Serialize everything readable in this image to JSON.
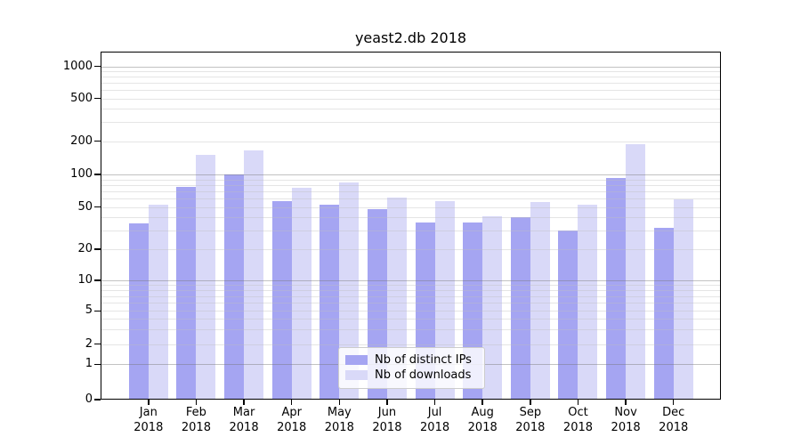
{
  "title": "yeast2.db 2018",
  "chart_data": {
    "type": "bar",
    "title": "yeast2.db 2018",
    "categories": [
      "Jan 2018",
      "Feb 2018",
      "Mar 2018",
      "Apr 2018",
      "May 2018",
      "Jun 2018",
      "Jul 2018",
      "Aug 2018",
      "Sep 2018",
      "Oct 2018",
      "Nov 2018",
      "Dec 2018"
    ],
    "series": [
      {
        "name": "Nb of distinct IPs",
        "color": "#a5a5f2",
        "values": [
          35,
          76,
          100,
          57,
          52,
          48,
          36,
          36,
          40,
          30,
          92,
          32
        ]
      },
      {
        "name": "Nb of downloads",
        "color": "#d9d9f8",
        "values": [
          52,
          149,
          164,
          75,
          84,
          61,
          57,
          41,
          55,
          52,
          187,
          59
        ]
      }
    ],
    "xlabel": "",
    "ylabel": "",
    "yscale": "symlog",
    "y_ticks": [
      0,
      1,
      2,
      5,
      10,
      20,
      50,
      100,
      200,
      500,
      1000
    ],
    "ylim": [
      0,
      1500
    ],
    "grid": "horizontal major and minor gridlines, drawn over bars",
    "legend_position": "lower center inside plot"
  },
  "legend": {
    "item1": "Nb of distinct IPs",
    "item2": "Nb of downloads"
  }
}
